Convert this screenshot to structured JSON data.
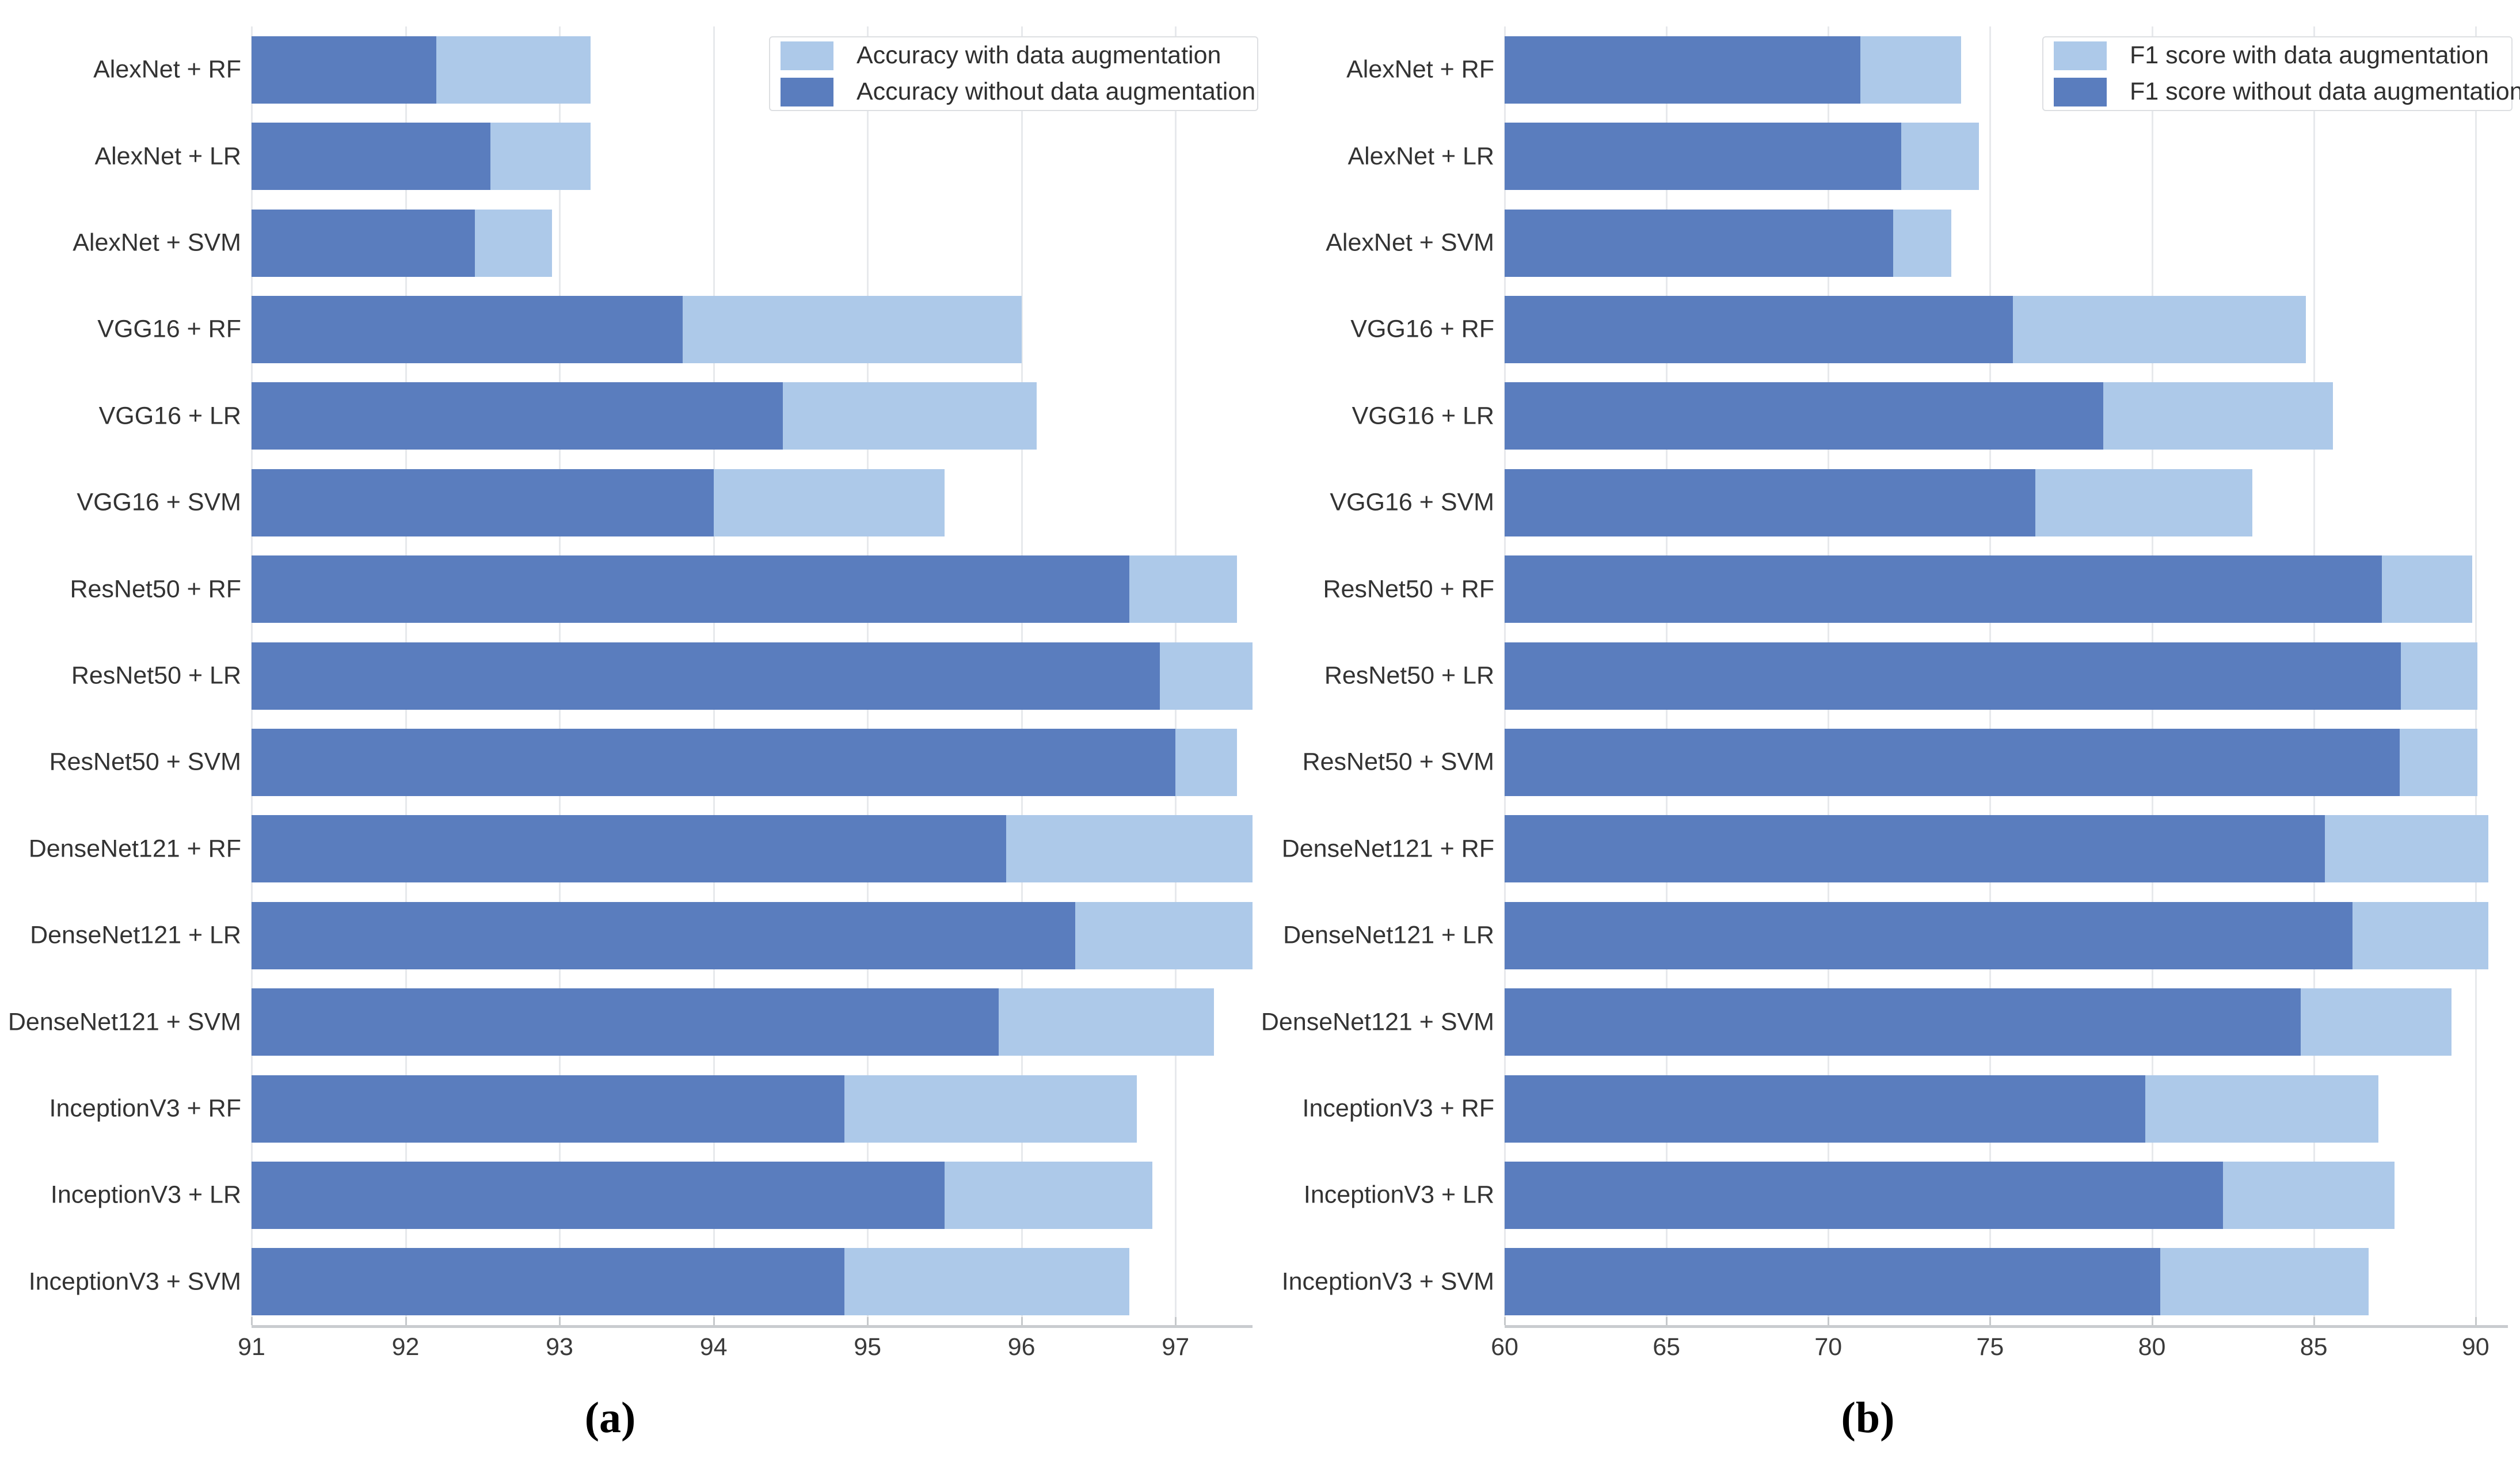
{
  "colors": {
    "with_augmentation": "#adc9e9",
    "without_augmentation": "#5a7dbe",
    "gridline": "#e7e9ec",
    "axis_spine": "#c9cccf",
    "text": "#3a3a3a"
  },
  "captions": {
    "a": "(a)",
    "b": "(b)"
  },
  "chart_data": [
    {
      "type": "bar",
      "orientation": "horizontal",
      "subfigure_label": "(a)",
      "title": "",
      "xlabel": "",
      "ylabel": "",
      "grid": "vertical",
      "legend_position": "upper right",
      "xlim": [
        91,
        97.5
      ],
      "xticks": [
        91,
        92,
        93,
        94,
        95,
        96,
        97
      ],
      "categories": [
        "AlexNet + RF",
        "AlexNet + LR",
        "AlexNet + SVM",
        "VGG16 + RF",
        "VGG16 + LR",
        "VGG16 + SVM",
        "ResNet50 + RF",
        "ResNet50 + LR",
        "ResNet50 + SVM",
        "DenseNet121 + RF",
        "DenseNet121 + LR",
        "DenseNet121 + SVM",
        "InceptionV3 + RF",
        "InceptionV3 + LR",
        "InceptionV3 + SVM"
      ],
      "series": [
        {
          "name": "Accuracy with data augmentation",
          "color": "#adc9e9",
          "values": [
            93.2,
            93.2,
            92.95,
            96.0,
            96.1,
            95.5,
            97.4,
            97.5,
            97.4,
            97.5,
            97.5,
            97.25,
            96.75,
            96.85,
            96.7
          ]
        },
        {
          "name": "Accuracy without data augmentation",
          "color": "#5a7dbe",
          "values": [
            92.2,
            92.55,
            92.45,
            93.8,
            94.45,
            94.0,
            96.7,
            96.9,
            97.0,
            95.9,
            96.35,
            95.85,
            94.85,
            95.5,
            94.85
          ]
        }
      ]
    },
    {
      "type": "bar",
      "orientation": "horizontal",
      "subfigure_label": "(b)",
      "title": "",
      "xlabel": "",
      "ylabel": "",
      "grid": "vertical",
      "legend_position": "upper right",
      "xlim": [
        60,
        91
      ],
      "xticks": [
        60,
        65,
        70,
        75,
        80,
        85,
        90
      ],
      "categories": [
        "AlexNet + RF",
        "AlexNet + LR",
        "AlexNet + SVM",
        "VGG16 + RF",
        "VGG16 + LR",
        "VGG16 + SVM",
        "ResNet50 + RF",
        "ResNet50 + LR",
        "ResNet50 + SVM",
        "DenseNet121 + RF",
        "DenseNet121 + LR",
        "DenseNet121 + SVM",
        "InceptionV3 + RF",
        "InceptionV3 + LR",
        "InceptionV3 + SVM"
      ],
      "series": [
        {
          "name": "F1 score with data augmentation",
          "color": "#adc9e9",
          "values": [
            74.1,
            74.65,
            73.8,
            84.75,
            85.6,
            83.1,
            89.9,
            90.05,
            90.05,
            90.4,
            90.4,
            89.25,
            87.0,
            87.5,
            86.7
          ]
        },
        {
          "name": "F1 score without data augmentation",
          "color": "#5a7dbe",
          "values": [
            71.0,
            72.25,
            72.0,
            75.7,
            78.5,
            76.4,
            87.1,
            87.7,
            87.65,
            85.35,
            86.2,
            84.6,
            79.8,
            82.2,
            80.25
          ]
        }
      ]
    }
  ]
}
